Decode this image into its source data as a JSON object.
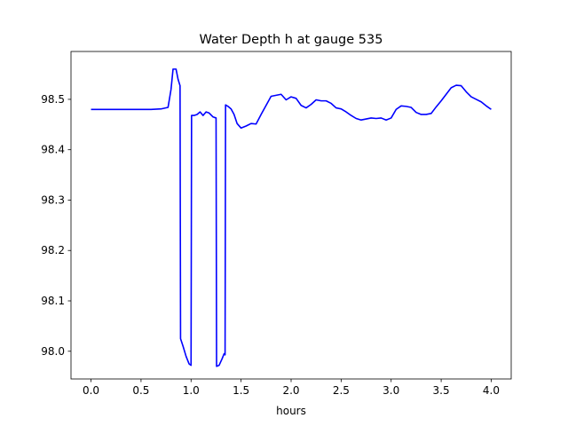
{
  "chart_data": {
    "type": "line",
    "title": "Water Depth h at gauge 535",
    "xlabel": "hours",
    "ylabel": "",
    "xlim": [
      -0.2,
      4.2
    ],
    "ylim": [
      97.945,
      98.595
    ],
    "xticks": [
      0.0,
      0.5,
      1.0,
      1.5,
      2.0,
      2.5,
      3.0,
      3.5,
      4.0
    ],
    "xtick_labels": [
      "0.0",
      "0.5",
      "1.0",
      "1.5",
      "2.0",
      "2.5",
      "3.0",
      "3.5",
      "4.0"
    ],
    "yticks": [
      98.0,
      98.1,
      98.2,
      98.3,
      98.4,
      98.5
    ],
    "ytick_labels": [
      "98.0",
      "98.1",
      "98.2",
      "98.3",
      "98.4",
      "98.5"
    ],
    "grid": false,
    "series_color": "#0000ff",
    "series": [
      {
        "name": "",
        "x": [
          0.0,
          0.3,
          0.6,
          0.7,
          0.77,
          0.8,
          0.82,
          0.85,
          0.87,
          0.89,
          0.895,
          0.92,
          0.95,
          0.98,
          1.0,
          1.005,
          1.03,
          1.06,
          1.09,
          1.12,
          1.15,
          1.18,
          1.22,
          1.25,
          1.255,
          1.28,
          1.31,
          1.33,
          1.34,
          1.345,
          1.37,
          1.4,
          1.43,
          1.46,
          1.5,
          1.55,
          1.6,
          1.65,
          1.7,
          1.75,
          1.8,
          1.85,
          1.9,
          1.95,
          2.0,
          2.05,
          2.1,
          2.15,
          2.2,
          2.25,
          2.3,
          2.35,
          2.4,
          2.45,
          2.5,
          2.55,
          2.6,
          2.65,
          2.7,
          2.75,
          2.8,
          2.85,
          2.9,
          2.95,
          3.0,
          3.05,
          3.1,
          3.15,
          3.2,
          3.25,
          3.3,
          3.35,
          3.4,
          3.45,
          3.5,
          3.55,
          3.6,
          3.65,
          3.7,
          3.75,
          3.8,
          3.85,
          3.9,
          3.95,
          4.0
        ],
        "y": [
          98.48,
          98.48,
          98.48,
          98.481,
          98.484,
          98.52,
          98.56,
          98.56,
          98.54,
          98.527,
          98.025,
          98.01,
          97.99,
          97.975,
          97.972,
          98.468,
          98.468,
          98.47,
          98.475,
          98.468,
          98.475,
          98.473,
          98.465,
          98.463,
          97.97,
          97.972,
          97.985,
          97.995,
          97.993,
          98.489,
          98.486,
          98.481,
          98.47,
          98.452,
          98.443,
          98.447,
          98.452,
          98.451,
          98.47,
          98.488,
          98.506,
          98.508,
          98.51,
          98.499,
          98.505,
          98.502,
          98.488,
          98.483,
          98.49,
          98.499,
          98.497,
          98.497,
          98.492,
          98.483,
          98.481,
          98.475,
          98.468,
          98.462,
          98.459,
          98.461,
          98.463,
          98.462,
          98.463,
          98.459,
          98.463,
          98.48,
          98.487,
          98.486,
          98.484,
          98.474,
          98.47,
          98.47,
          98.472,
          98.485,
          98.497,
          98.51,
          98.523,
          98.528,
          98.527,
          98.515,
          98.505,
          98.5,
          98.495,
          98.487,
          98.48
        ]
      }
    ]
  }
}
